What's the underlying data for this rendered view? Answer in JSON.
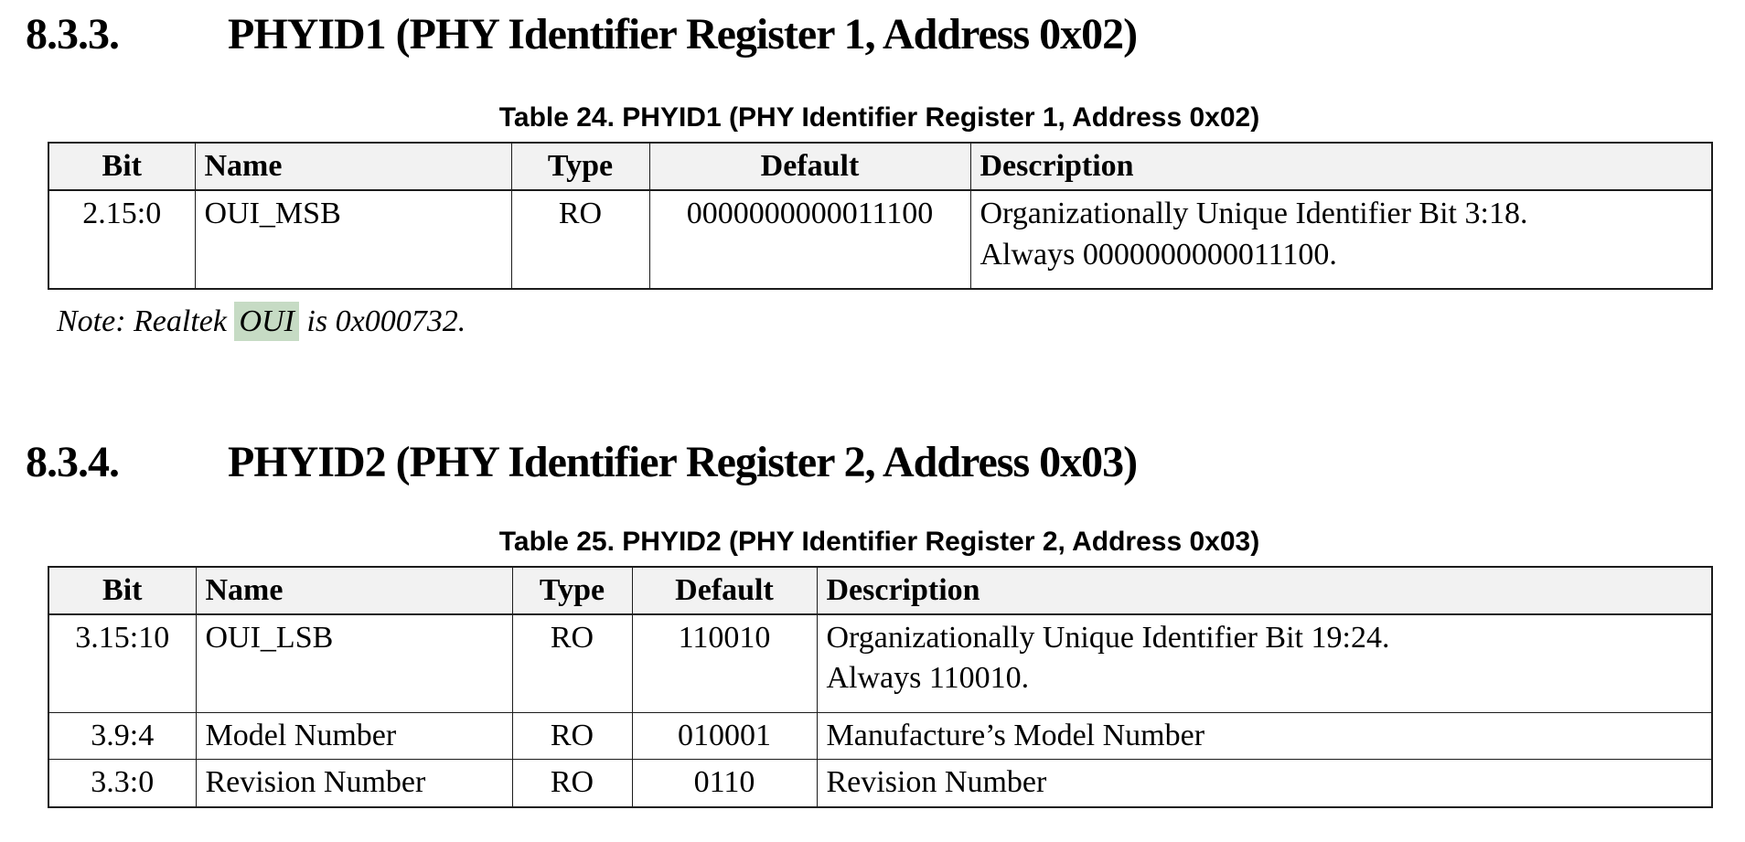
{
  "colors": {
    "table_header_bg": "#f2f2f2",
    "table_border": "#1c1c1c",
    "note_highlight_bg": "#c6dbc4"
  },
  "sections": [
    {
      "heading": {
        "number": "8.3.3.",
        "title": "PHYID1 (PHY Identifier Register 1, Address 0x02)"
      },
      "caption": "Table 24. PHYID1 (PHY Identifier Register 1, Address 0x02)",
      "table": {
        "headers": [
          "Bit",
          "Name",
          "Type",
          "Default",
          "Description"
        ],
        "rows": [
          {
            "bit": "2.15:0",
            "name": "OUI_MSB",
            "type": "RO",
            "default": "0000000000011100",
            "description": [
              "Organizationally Unique Identifier Bit 3:18.",
              "Always 0000000000011100."
            ]
          }
        ]
      },
      "note": {
        "prefix": "Note: Realtek ",
        "highlighted": "OUI",
        "suffix": " is 0x000732."
      }
    },
    {
      "heading": {
        "number": "8.3.4.",
        "title": "PHYID2 (PHY Identifier Register 2, Address 0x03)"
      },
      "caption": "Table 25. PHYID2 (PHY Identifier Register 2, Address 0x03)",
      "table": {
        "headers": [
          "Bit",
          "Name",
          "Type",
          "Default",
          "Description"
        ],
        "rows": [
          {
            "bit": "3.15:10",
            "name": "OUI_LSB",
            "type": "RO",
            "default": "110010",
            "description": [
              "Organizationally Unique Identifier Bit 19:24.",
              "Always 110010."
            ]
          },
          {
            "bit": "3.9:4",
            "name": "Model Number",
            "type": "RO",
            "default": "010001",
            "description": [
              "Manufacture’s Model Number"
            ]
          },
          {
            "bit": "3.3:0",
            "name": "Revision Number",
            "type": "RO",
            "default": "0110",
            "description": [
              "Revision Number"
            ]
          }
        ]
      }
    }
  ]
}
